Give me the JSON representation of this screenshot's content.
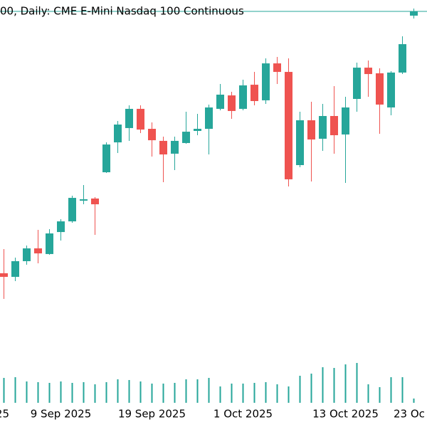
{
  "chart_data": {
    "type": "candlestick",
    "title": "00, Daily:  CME E-Mini Nasdaq 100 Continuous",
    "categories": [
      "25",
      null,
      null,
      null,
      null,
      "9 Sep 2025",
      null,
      null,
      null,
      null,
      null,
      null,
      null,
      "19 Sep 2025",
      null,
      null,
      null,
      null,
      null,
      null,
      null,
      "1 Oct 2025",
      null,
      null,
      null,
      null,
      null,
      null,
      null,
      null,
      "13 Oct 2025",
      null,
      null,
      null,
      null,
      null,
      "23 Oc"
    ],
    "open": [
      23427,
      23393,
      23540,
      23660,
      23607,
      23813,
      23913,
      24107,
      24127,
      24373,
      24653,
      24787,
      24967,
      24780,
      24667,
      24547,
      24647,
      24760,
      24780,
      24967,
      25093,
      24967,
      25193,
      25047,
      25393,
      25313,
      24440,
      24860,
      24687,
      24900,
      24727,
      25060,
      25353,
      25300,
      24980,
      25307,
      25840
    ],
    "high": [
      23653,
      23573,
      23687,
      23833,
      23840,
      23933,
      24153,
      24253,
      24140,
      24653,
      24853,
      25000,
      25000,
      24840,
      24707,
      24707,
      24940,
      24920,
      25007,
      25200,
      25127,
      25240,
      25313,
      25440,
      25453,
      25440,
      24940,
      25033,
      25013,
      25180,
      25080,
      25400,
      25420,
      25347,
      25320,
      25647,
      25907
    ],
    "low": [
      23187,
      23353,
      23507,
      23520,
      23600,
      23733,
      23900,
      24073,
      23787,
      24367,
      24553,
      24667,
      24740,
      24520,
      24280,
      24393,
      24640,
      24720,
      24540,
      24953,
      24873,
      24953,
      25000,
      25013,
      25200,
      24240,
      24420,
      24287,
      24573,
      24547,
      24273,
      24940,
      25080,
      24733,
      24907,
      25293,
      25813
    ],
    "close": [
      23393,
      23540,
      23660,
      23613,
      23800,
      23913,
      24133,
      24120,
      24073,
      24633,
      24820,
      24967,
      24773,
      24673,
      24540,
      24667,
      24753,
      24780,
      24980,
      25100,
      24947,
      25187,
      25040,
      25393,
      25313,
      24307,
      24860,
      24680,
      24900,
      24720,
      24980,
      25353,
      25293,
      25007,
      25307,
      25573,
      25880
    ],
    "volume": [
      35,
      36,
      30,
      29,
      28,
      30,
      28,
      29,
      26,
      29,
      33,
      32,
      30,
      27,
      27,
      28,
      33,
      33,
      35,
      23,
      27,
      27,
      28,
      29,
      26,
      23,
      38,
      41,
      50,
      49,
      54,
      56,
      26,
      22,
      36,
      36,
      6
    ],
    "up_color": "#26a69a",
    "down_color": "#ef5350",
    "ylim": [
      23000,
      25920
    ],
    "vlim": [
      0,
      60
    ]
  }
}
